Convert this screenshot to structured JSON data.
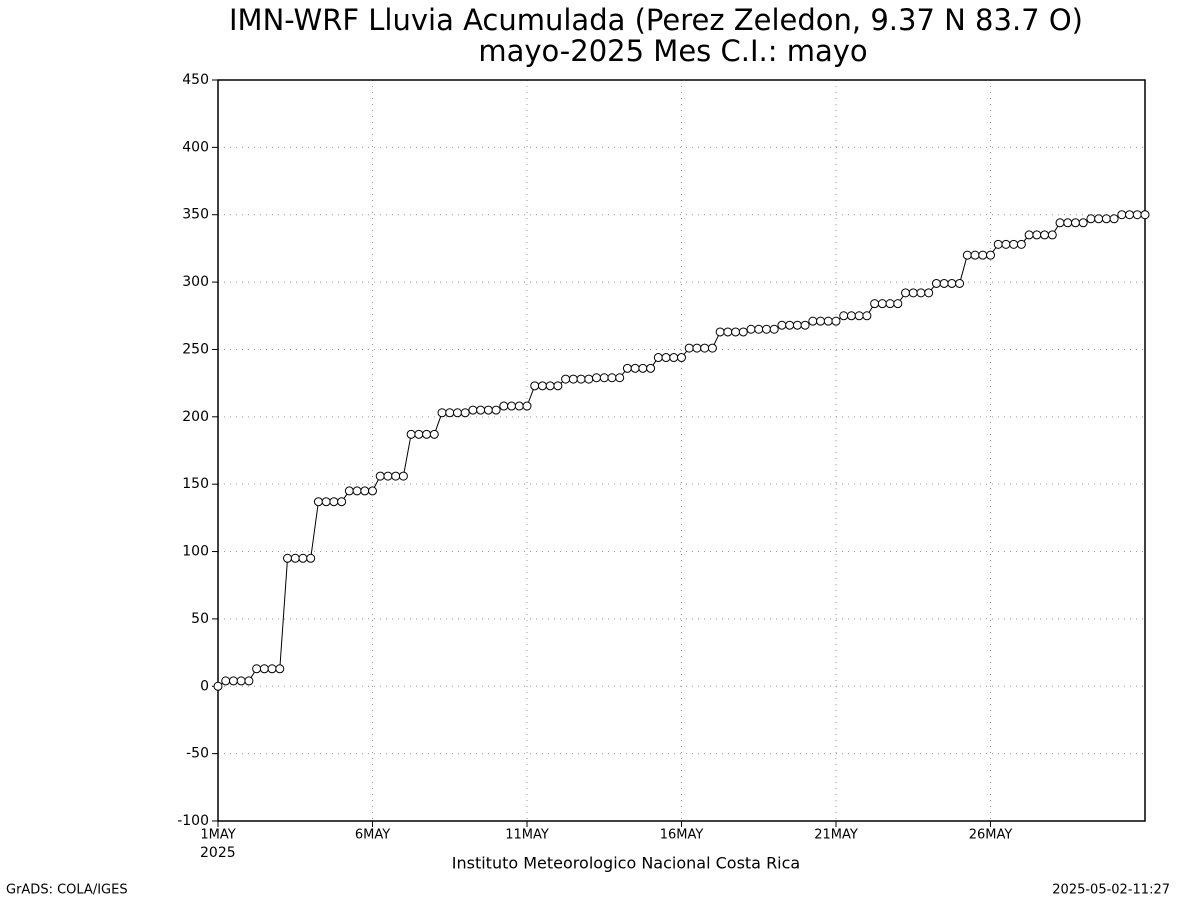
{
  "chart_data": {
    "type": "line",
    "title": "IMN-WRF  Lluvia Acumulada (Perez Zeledon, 9.37  N 83.7  O)",
    "subtitle": "mayo-2025 Mes C.I.: mayo",
    "x_label": "Instituto Meteorologico Nacional Costa Rica",
    "year_label": "2025",
    "footer_left": "GrADS: COLA/IGES",
    "footer_right": "2025-05-02-11:27",
    "x": [
      1,
      1.25,
      1.5,
      1.75,
      2,
      2.25,
      2.5,
      2.75,
      3,
      3.25,
      3.5,
      3.75,
      4,
      4.25,
      4.5,
      4.75,
      5,
      5.25,
      5.5,
      5.75,
      6,
      6.25,
      6.5,
      6.75,
      7,
      7.25,
      7.5,
      7.75,
      8,
      8.25,
      8.5,
      8.75,
      9,
      9.25,
      9.5,
      9.75,
      10,
      10.25,
      10.5,
      10.75,
      11,
      11.25,
      11.5,
      11.75,
      12,
      12.25,
      12.5,
      12.75,
      13,
      13.25,
      13.5,
      13.75,
      14,
      14.25,
      14.5,
      14.75,
      15,
      15.25,
      15.5,
      15.75,
      16,
      16.25,
      16.5,
      16.75,
      17,
      17.25,
      17.5,
      17.75,
      18,
      18.25,
      18.5,
      18.75,
      19,
      19.25,
      19.5,
      19.75,
      20,
      20.25,
      20.5,
      20.75,
      21,
      21.25,
      21.5,
      21.75,
      22,
      22.25,
      22.5,
      22.75,
      23,
      23.25,
      23.5,
      23.75,
      24,
      24.25,
      24.5,
      24.75,
      25,
      25.25,
      25.5,
      25.75,
      26,
      26.25,
      26.5,
      26.75,
      27,
      27.25,
      27.5,
      27.75,
      28,
      28.25,
      28.5,
      28.75,
      29,
      29.25,
      29.5,
      29.75,
      30,
      30.25,
      30.5,
      30.75,
      31
    ],
    "series": [
      {
        "color": "#000000",
        "marker_fill": "#ffffff",
        "values": [
          0,
          4,
          4,
          4,
          4,
          13,
          13,
          13,
          13,
          95,
          95,
          95,
          95,
          137,
          137,
          137,
          137,
          145,
          145,
          145,
          145,
          156,
          156,
          156,
          156,
          187,
          187,
          187,
          187,
          203,
          203,
          203,
          203,
          205,
          205,
          205,
          205,
          208,
          208,
          208,
          208,
          223,
          223,
          223,
          223,
          228,
          228,
          228,
          228,
          229,
          229,
          229,
          229,
          236,
          236,
          236,
          236,
          244,
          244,
          244,
          244,
          251,
          251,
          251,
          251,
          263,
          263,
          263,
          263,
          265,
          265,
          265,
          265,
          268,
          268,
          268,
          268,
          271,
          271,
          271,
          271,
          275,
          275,
          275,
          275,
          284,
          284,
          284,
          284,
          292,
          292,
          292,
          292,
          299,
          299,
          299,
          299,
          320,
          320,
          320,
          320,
          328,
          328,
          328,
          328,
          335,
          335,
          335,
          335,
          344,
          344,
          344,
          344,
          347,
          347,
          347,
          347,
          350,
          350,
          350,
          350
        ]
      }
    ],
    "xlim": [
      1,
      31
    ],
    "xticks": [
      {
        "value": 1,
        "label": "1MAY"
      },
      {
        "value": 6,
        "label": "6MAY"
      },
      {
        "value": 11,
        "label": "11MAY"
      },
      {
        "value": 16,
        "label": "16MAY"
      },
      {
        "value": 21,
        "label": "21MAY"
      },
      {
        "value": 26,
        "label": "26MAY"
      }
    ],
    "ylim": [
      -100,
      450
    ],
    "yticks": [
      -100,
      -50,
      0,
      50,
      100,
      150,
      200,
      250,
      300,
      350,
      400,
      450
    ],
    "grid": true
  }
}
